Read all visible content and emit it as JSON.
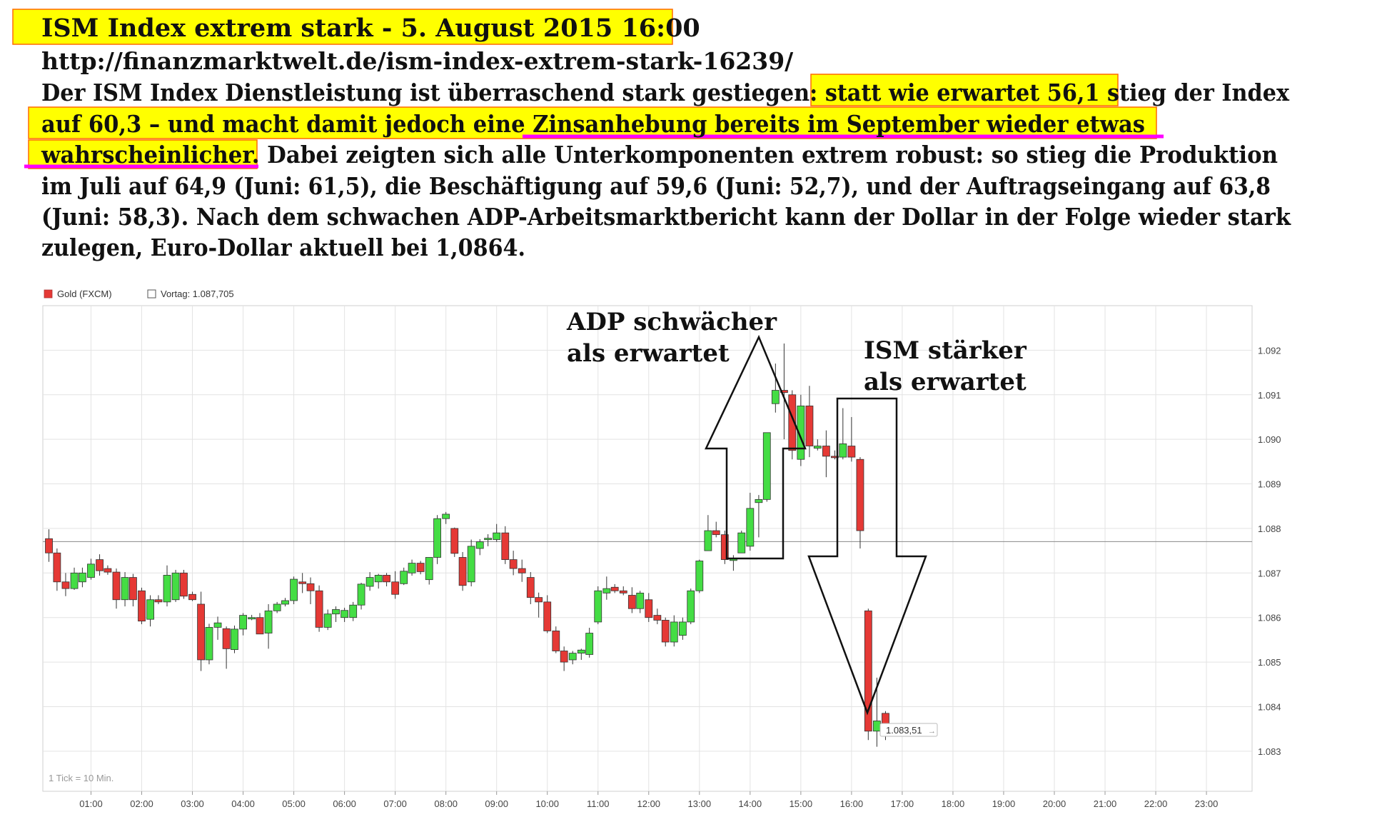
{
  "article": {
    "title": "ISM Index extrem stark - 5. August 2015 16:00",
    "url": "http://finanzmarktwelt.de/ism-index-extrem-stark-16239/",
    "lines": [
      "Der ISM Index Dienstleistung ist überraschend stark gestiegen: statt wie erwartet 56,1 stieg der Index",
      "auf 60,3 – und macht damit jedoch eine Zinsanhebung bereits im September wieder etwas",
      "wahrscheinlicher.  Dabei zeigten sich alle Unterkomponenten extrem robust: so stieg die Produktion",
      "im Juli auf 64,9 (Juni: 61,5), die Beschäftigung auf 59,6 (Juni: 52,7), und der Auftragseingang auf 63,8",
      "(Juni: 58,3). Nach dem schwachen ADP-Arbeitsmarktbericht kann der Dollar in der Folge wieder stark",
      "zulegen, Euro-Dollar aktuell bei 1,0864."
    ],
    "highlight_color": "#ffff00",
    "highlight_border": "#ff6a00",
    "underline_color": "#ff00ff"
  },
  "chart_data": {
    "type": "candlestick",
    "legend": [
      {
        "label": "Gold (FXCM)",
        "color": "#e53935"
      },
      {
        "label": "Vortag: 1.087,705",
        "color": "#ffffff"
      }
    ],
    "tick_note": "1 Tick = 10 Min.",
    "x_ticks": [
      "01:00",
      "02:00",
      "03:00",
      "04:00",
      "05:00",
      "06:00",
      "07:00",
      "08:00",
      "09:00",
      "10:00",
      "11:00",
      "12:00",
      "13:00",
      "14:00",
      "15:00",
      "16:00",
      "17:00",
      "18:00",
      "19:00",
      "20:00",
      "21:00",
      "22:00",
      "23:00"
    ],
    "y_ticks": [
      "1.092",
      "1.091",
      "1.090",
      "1.089",
      "1.088",
      "1.087",
      "1.086",
      "1.085",
      "1.084",
      "1.083"
    ],
    "y_tick_values": [
      1.092,
      1.091,
      1.09,
      1.089,
      1.088,
      1.087,
      1.086,
      1.085,
      1.084,
      1.083
    ],
    "x_range_hours": [
      0.05,
      23.9
    ],
    "y_range": [
      1.0821,
      1.093
    ],
    "previous_close": 1.087705,
    "last_price_label": "1.083,51",
    "up_color": "#44dd44",
    "down_color": "#e53935",
    "candles": [
      {
        "t": 0.17,
        "o": 1.08777,
        "h": 1.08798,
        "l": 1.08725,
        "c": 1.08745
      },
      {
        "t": 0.33,
        "o": 1.08745,
        "h": 1.08755,
        "l": 1.0866,
        "c": 1.0868
      },
      {
        "t": 0.5,
        "o": 1.0868,
        "h": 1.087,
        "l": 1.08648,
        "c": 1.08665
      },
      {
        "t": 0.67,
        "o": 1.08665,
        "h": 1.08712,
        "l": 1.08662,
        "c": 1.087
      },
      {
        "t": 0.83,
        "o": 1.0868,
        "h": 1.08712,
        "l": 1.08668,
        "c": 1.087
      },
      {
        "t": 1.0,
        "o": 1.0869,
        "h": 1.08732,
        "l": 1.08685,
        "c": 1.0872
      },
      {
        "t": 1.17,
        "o": 1.0873,
        "h": 1.08742,
        "l": 1.08694,
        "c": 1.08705
      },
      {
        "t": 1.33,
        "o": 1.0871,
        "h": 1.08717,
        "l": 1.08696,
        "c": 1.08702
      },
      {
        "t": 1.5,
        "o": 1.08702,
        "h": 1.0871,
        "l": 1.0862,
        "c": 1.0864
      },
      {
        "t": 1.67,
        "o": 1.0864,
        "h": 1.08702,
        "l": 1.08625,
        "c": 1.0869
      },
      {
        "t": 1.83,
        "o": 1.0869,
        "h": 1.08698,
        "l": 1.08625,
        "c": 1.0864
      },
      {
        "t": 2.0,
        "o": 1.0866,
        "h": 1.08667,
        "l": 1.08585,
        "c": 1.08592
      },
      {
        "t": 2.17,
        "o": 1.08596,
        "h": 1.0865,
        "l": 1.0858,
        "c": 1.0864
      },
      {
        "t": 2.33,
        "o": 1.0864,
        "h": 1.0865,
        "l": 1.0863,
        "c": 1.08635
      },
      {
        "t": 2.5,
        "o": 1.08635,
        "h": 1.08717,
        "l": 1.08625,
        "c": 1.08695
      },
      {
        "t": 2.67,
        "o": 1.0864,
        "h": 1.08707,
        "l": 1.08635,
        "c": 1.087
      },
      {
        "t": 2.83,
        "o": 1.087,
        "h": 1.08707,
        "l": 1.08642,
        "c": 1.08648
      },
      {
        "t": 3.0,
        "o": 1.08652,
        "h": 1.08658,
        "l": 1.08637,
        "c": 1.0864
      },
      {
        "t": 3.17,
        "o": 1.0863,
        "h": 1.08658,
        "l": 1.0848,
        "c": 1.08505
      },
      {
        "t": 3.33,
        "o": 1.08505,
        "h": 1.08586,
        "l": 1.08495,
        "c": 1.08578
      },
      {
        "t": 3.5,
        "o": 1.08578,
        "h": 1.08602,
        "l": 1.0855,
        "c": 1.08588
      },
      {
        "t": 3.67,
        "o": 1.08575,
        "h": 1.0858,
        "l": 1.08485,
        "c": 1.0853
      },
      {
        "t": 3.83,
        "o": 1.08528,
        "h": 1.08582,
        "l": 1.0852,
        "c": 1.08574
      },
      {
        "t": 4.0,
        "o": 1.08574,
        "h": 1.0861,
        "l": 1.0856,
        "c": 1.08605
      },
      {
        "t": 4.17,
        "o": 1.08598,
        "h": 1.08606,
        "l": 1.08594,
        "c": 1.086
      },
      {
        "t": 4.33,
        "o": 1.086,
        "h": 1.0861,
        "l": 1.0857,
        "c": 1.08563
      },
      {
        "t": 4.5,
        "o": 1.08565,
        "h": 1.0863,
        "l": 1.0853,
        "c": 1.08615
      },
      {
        "t": 4.67,
        "o": 1.08615,
        "h": 1.08635,
        "l": 1.0861,
        "c": 1.0863
      },
      {
        "t": 4.83,
        "o": 1.0863,
        "h": 1.08644,
        "l": 1.08625,
        "c": 1.08638
      },
      {
        "t": 5.0,
        "o": 1.08638,
        "h": 1.08692,
        "l": 1.0863,
        "c": 1.08686
      },
      {
        "t": 5.17,
        "o": 1.0868,
        "h": 1.087,
        "l": 1.08655,
        "c": 1.08676
      },
      {
        "t": 5.33,
        "o": 1.08676,
        "h": 1.0869,
        "l": 1.0863,
        "c": 1.0866
      },
      {
        "t": 5.5,
        "o": 1.0866,
        "h": 1.08672,
        "l": 1.08568,
        "c": 1.08578
      },
      {
        "t": 5.67,
        "o": 1.08578,
        "h": 1.08618,
        "l": 1.08572,
        "c": 1.08608
      },
      {
        "t": 5.83,
        "o": 1.08608,
        "h": 1.08625,
        "l": 1.0859,
        "c": 1.08618
      },
      {
        "t": 6.0,
        "o": 1.086,
        "h": 1.08622,
        "l": 1.0859,
        "c": 1.08616
      },
      {
        "t": 6.17,
        "o": 1.086,
        "h": 1.08635,
        "l": 1.08592,
        "c": 1.08628
      },
      {
        "t": 6.33,
        "o": 1.08628,
        "h": 1.08678,
        "l": 1.08618,
        "c": 1.08675
      },
      {
        "t": 6.5,
        "o": 1.0867,
        "h": 1.08702,
        "l": 1.0866,
        "c": 1.0869
      },
      {
        "t": 6.67,
        "o": 1.0868,
        "h": 1.08698,
        "l": 1.08665,
        "c": 1.08695
      },
      {
        "t": 6.83,
        "o": 1.08695,
        "h": 1.087,
        "l": 1.0867,
        "c": 1.0868
      },
      {
        "t": 7.0,
        "o": 1.0868,
        "h": 1.08704,
        "l": 1.08642,
        "c": 1.08652
      },
      {
        "t": 7.17,
        "o": 1.08676,
        "h": 1.08712,
        "l": 1.08673,
        "c": 1.08704
      },
      {
        "t": 7.33,
        "o": 1.087,
        "h": 1.0873,
        "l": 1.08694,
        "c": 1.08722
      },
      {
        "t": 7.5,
        "o": 1.08722,
        "h": 1.08727,
        "l": 1.08697,
        "c": 1.08703
      },
      {
        "t": 7.67,
        "o": 1.08685,
        "h": 1.0873,
        "l": 1.08674,
        "c": 1.08735
      },
      {
        "t": 7.83,
        "o": 1.08735,
        "h": 1.0883,
        "l": 1.0872,
        "c": 1.08822
      },
      {
        "t": 8.0,
        "o": 1.08822,
        "h": 1.08837,
        "l": 1.0881,
        "c": 1.08832
      },
      {
        "t": 8.17,
        "o": 1.088,
        "h": 1.08802,
        "l": 1.08736,
        "c": 1.08744
      },
      {
        "t": 8.33,
        "o": 1.08735,
        "h": 1.08747,
        "l": 1.0866,
        "c": 1.08672
      },
      {
        "t": 8.5,
        "o": 1.0868,
        "h": 1.08775,
        "l": 1.0867,
        "c": 1.0876
      },
      {
        "t": 8.67,
        "o": 1.08755,
        "h": 1.08776,
        "l": 1.0874,
        "c": 1.0877
      },
      {
        "t": 8.83,
        "o": 1.08775,
        "h": 1.08787,
        "l": 1.0876,
        "c": 1.08778
      },
      {
        "t": 9.0,
        "o": 1.08775,
        "h": 1.0881,
        "l": 1.0877,
        "c": 1.0879
      },
      {
        "t": 9.17,
        "o": 1.0879,
        "h": 1.08805,
        "l": 1.0872,
        "c": 1.0873
      },
      {
        "t": 9.33,
        "o": 1.0873,
        "h": 1.0875,
        "l": 1.08695,
        "c": 1.0871
      },
      {
        "t": 9.5,
        "o": 1.0871,
        "h": 1.0873,
        "l": 1.0868,
        "c": 1.087
      },
      {
        "t": 9.67,
        "o": 1.0869,
        "h": 1.08702,
        "l": 1.0863,
        "c": 1.08645
      },
      {
        "t": 9.83,
        "o": 1.08645,
        "h": 1.08656,
        "l": 1.086,
        "c": 1.08635
      },
      {
        "t": 10.0,
        "o": 1.08635,
        "h": 1.0865,
        "l": 1.08565,
        "c": 1.0857
      },
      {
        "t": 10.17,
        "o": 1.0857,
        "h": 1.0858,
        "l": 1.0852,
        "c": 1.08525
      },
      {
        "t": 10.33,
        "o": 1.08525,
        "h": 1.08535,
        "l": 1.0848,
        "c": 1.085
      },
      {
        "t": 10.5,
        "o": 1.08505,
        "h": 1.08525,
        "l": 1.08495,
        "c": 1.0852
      },
      {
        "t": 10.67,
        "o": 1.0852,
        "h": 1.0853,
        "l": 1.08505,
        "c": 1.08527
      },
      {
        "t": 10.83,
        "o": 1.08517,
        "h": 1.08577,
        "l": 1.0851,
        "c": 1.08565
      },
      {
        "t": 11.0,
        "o": 1.0859,
        "h": 1.0867,
        "l": 1.08585,
        "c": 1.0866
      },
      {
        "t": 11.17,
        "o": 1.08655,
        "h": 1.08692,
        "l": 1.0864,
        "c": 1.08665
      },
      {
        "t": 11.33,
        "o": 1.08668,
        "h": 1.08675,
        "l": 1.08655,
        "c": 1.0866
      },
      {
        "t": 11.5,
        "o": 1.0866,
        "h": 1.0867,
        "l": 1.0865,
        "c": 1.08655
      },
      {
        "t": 11.67,
        "o": 1.0865,
        "h": 1.08668,
        "l": 1.0861,
        "c": 1.0862
      },
      {
        "t": 11.83,
        "o": 1.0862,
        "h": 1.0866,
        "l": 1.0861,
        "c": 1.08655
      },
      {
        "t": 12.0,
        "o": 1.0864,
        "h": 1.08655,
        "l": 1.0859,
        "c": 1.086
      },
      {
        "t": 12.17,
        "o": 1.08605,
        "h": 1.0862,
        "l": 1.08585,
        "c": 1.08594
      },
      {
        "t": 12.33,
        "o": 1.08594,
        "h": 1.086,
        "l": 1.08535,
        "c": 1.08545
      },
      {
        "t": 12.5,
        "o": 1.08545,
        "h": 1.08605,
        "l": 1.08535,
        "c": 1.0859
      },
      {
        "t": 12.67,
        "o": 1.0856,
        "h": 1.086,
        "l": 1.0855,
        "c": 1.0859
      },
      {
        "t": 12.83,
        "o": 1.0859,
        "h": 1.08665,
        "l": 1.08585,
        "c": 1.0866
      },
      {
        "t": 13.0,
        "o": 1.0866,
        "h": 1.0873,
        "l": 1.08655,
        "c": 1.08727
      },
      {
        "t": 13.17,
        "o": 1.0875,
        "h": 1.0883,
        "l": 1.0875,
        "c": 1.08795
      },
      {
        "t": 13.33,
        "o": 1.08795,
        "h": 1.08815,
        "l": 1.0878,
        "c": 1.08786
      },
      {
        "t": 13.5,
        "o": 1.08786,
        "h": 1.08795,
        "l": 1.0872,
        "c": 1.0873
      },
      {
        "t": 13.67,
        "o": 1.08728,
        "h": 1.0874,
        "l": 1.08705,
        "c": 1.08733
      },
      {
        "t": 13.83,
        "o": 1.08745,
        "h": 1.08795,
        "l": 1.08745,
        "c": 1.0879
      },
      {
        "t": 14.0,
        "o": 1.0876,
        "h": 1.0888,
        "l": 1.0875,
        "c": 1.08845
      },
      {
        "t": 14.17,
        "o": 1.08858,
        "h": 1.08875,
        "l": 1.0878,
        "c": 1.08865
      },
      {
        "t": 14.33,
        "o": 1.08865,
        "h": 1.0901,
        "l": 1.0886,
        "c": 1.09015
      },
      {
        "t": 14.5,
        "o": 1.0908,
        "h": 1.0917,
        "l": 1.0906,
        "c": 1.0911
      },
      {
        "t": 14.67,
        "o": 1.0911,
        "h": 1.09215,
        "l": 1.09,
        "c": 1.09105
      },
      {
        "t": 14.83,
        "o": 1.091,
        "h": 1.0911,
        "l": 1.08955,
        "c": 1.08975
      },
      {
        "t": 15.0,
        "o": 1.08955,
        "h": 1.091,
        "l": 1.0894,
        "c": 1.09075
      },
      {
        "t": 15.17,
        "o": 1.09075,
        "h": 1.0912,
        "l": 1.0896,
        "c": 1.08985
      },
      {
        "t": 15.33,
        "o": 1.0898,
        "h": 1.09,
        "l": 1.08975,
        "c": 1.08985
      },
      {
        "t": 15.5,
        "o": 1.08985,
        "h": 1.0902,
        "l": 1.08915,
        "c": 1.08962
      },
      {
        "t": 15.67,
        "o": 1.08962,
        "h": 1.08975,
        "l": 1.08955,
        "c": 1.0896
      },
      {
        "t": 15.83,
        "o": 1.0896,
        "h": 1.0907,
        "l": 1.08955,
        "c": 1.0899
      },
      {
        "t": 16.0,
        "o": 1.08985,
        "h": 1.0905,
        "l": 1.0895,
        "c": 1.0896
      },
      {
        "t": 16.17,
        "o": 1.08955,
        "h": 1.0896,
        "l": 1.08755,
        "c": 1.08795
      },
      {
        "t": 16.33,
        "o": 1.08615,
        "h": 1.0862,
        "l": 1.08325,
        "c": 1.08345
      },
      {
        "t": 16.5,
        "o": 1.08345,
        "h": 1.08465,
        "l": 1.0831,
        "c": 1.08368
      },
      {
        "t": 16.67,
        "o": 1.08385,
        "h": 1.0839,
        "l": 1.08325,
        "c": 1.08351
      }
    ],
    "annotations": [
      {
        "text_lines": [
          "ADP schwächer",
          "als erwartet"
        ],
        "direction": "up"
      },
      {
        "text_lines": [
          "ISM stärker",
          "als erwartet"
        ],
        "direction": "down"
      }
    ]
  }
}
